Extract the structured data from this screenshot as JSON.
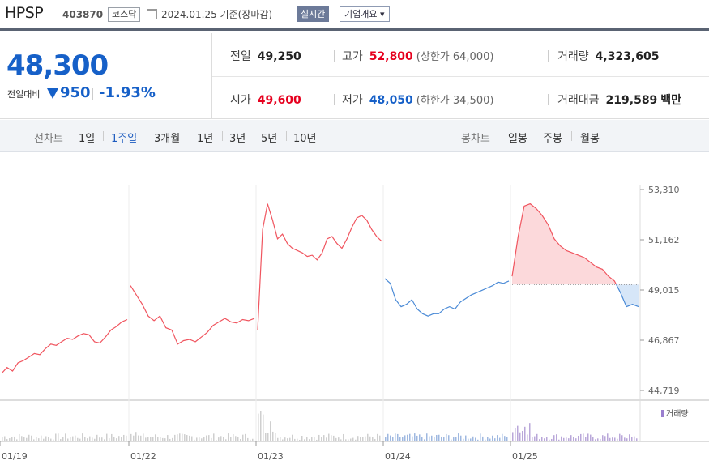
{
  "header": {
    "name": "HPSP",
    "code": "403870",
    "market": "코스닥",
    "date": "2024.01.25 기준(장마감)",
    "live_label": "실시간",
    "info_label": "기업개요 ▾"
  },
  "quote": {
    "price": "48,300",
    "change_label": "전일대비",
    "change": "950",
    "change_pct": "-1.93%",
    "prev_close_label": "전일",
    "prev_close": "49,250",
    "high_label": "고가",
    "high": "52,800",
    "upper_limit": "(상한가 64,000)",
    "volume_label": "거래량",
    "volume": "4,323,605",
    "open_label": "시가",
    "open": "49,600",
    "low_label": "저가",
    "low": "48,050",
    "lower_limit": "(하한가 34,500)",
    "amount_label": "거래대금",
    "amount": "219,589",
    "amount_unit": "백만"
  },
  "tabs": {
    "line_label": "선차트",
    "line_items": [
      "1일",
      "1주일",
      "3개월",
      "1년",
      "3년",
      "5년",
      "10년"
    ],
    "line_active": "1주일",
    "candle_label": "봉차트",
    "candle_items": [
      "일봉",
      "주봉",
      "월봉"
    ]
  },
  "colors": {
    "up": "#e6001e",
    "down": "#1660c8",
    "rise_line": "#f0555f",
    "fall_line": "#4a8ad6"
  },
  "chart_data": {
    "type": "line",
    "y_ticks": [
      "53,310",
      "51,162",
      "49,015",
      "46,867",
      "44,719"
    ],
    "ylim": [
      44719,
      53310
    ],
    "x_labels": [
      "01/19",
      "01/22",
      "01/23",
      "01/24",
      "01/25"
    ],
    "prev_close_reference": 49250,
    "volume_legend": "거래량",
    "series": [
      {
        "day": "01/19",
        "trend": "up",
        "values": [
          45450,
          45700,
          45550,
          45900,
          46000,
          46150,
          46300,
          46250,
          46500,
          46700,
          46650,
          46800,
          46950,
          46900,
          47050,
          47150,
          47100,
          46800,
          46750,
          47000,
          47300,
          47450,
          47650,
          47750
        ]
      },
      {
        "day": "01/22",
        "trend": "up",
        "values": [
          49200,
          48800,
          48400,
          47900,
          47700,
          47900,
          47400,
          47300,
          46700,
          46850,
          46900,
          46800,
          47000,
          47200,
          47500,
          47650,
          47800,
          47650,
          47600,
          47750,
          47700,
          47800
        ]
      },
      {
        "day": "01/23",
        "trend": "up",
        "values": [
          47300,
          51600,
          52700,
          52000,
          51200,
          51400,
          51000,
          50800,
          50700,
          50600,
          50450,
          50500,
          50300,
          50600,
          51200,
          51300,
          51000,
          50800,
          51200,
          51700,
          52100,
          52200,
          52000,
          51600,
          51300,
          51100
        ]
      },
      {
        "day": "01/24",
        "trend": "down",
        "values": [
          49500,
          49300,
          48600,
          48300,
          48400,
          48600,
          48200,
          48000,
          47900,
          48000,
          48000,
          48200,
          48300,
          48200,
          48500,
          48650,
          48800,
          48900,
          49000,
          49100,
          49200,
          49350,
          49300,
          49400
        ]
      },
      {
        "day": "01/25",
        "trend": "mixed",
        "values": [
          49600,
          51300,
          52600,
          52700,
          52500,
          52200,
          51800,
          51200,
          50900,
          50700,
          50600,
          50500,
          50400,
          50200,
          50000,
          49900,
          49600,
          49400,
          48900,
          48300,
          48400,
          48300
        ]
      }
    ]
  }
}
